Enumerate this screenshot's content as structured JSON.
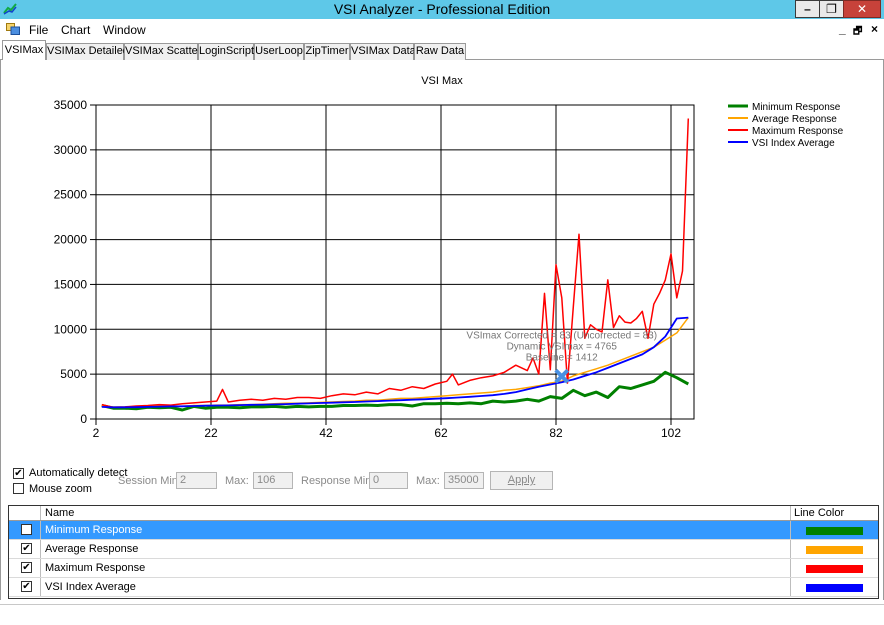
{
  "window": {
    "title": "VSI Analyzer - Professional Edition",
    "minimize_label": "–",
    "restore_label": "❐",
    "close_label": "✕"
  },
  "menu": {
    "items": [
      "File",
      "Chart",
      "Window"
    ],
    "mdi_minimize": "_",
    "mdi_restore": "🗗",
    "mdi_close": "×"
  },
  "tabs": [
    "VSIMax",
    "VSIMax Detailed",
    "VSIMax Scatter",
    "LoginScript",
    "UserLoop",
    "ZipTimer",
    "VSIMax Data",
    "Raw Data"
  ],
  "active_tab": 0,
  "chart_data": {
    "type": "line",
    "title": "VSI Max",
    "x_ticks": [
      2,
      22,
      42,
      62,
      82,
      102
    ],
    "y_ticks": [
      0,
      5000,
      10000,
      15000,
      20000,
      25000,
      30000,
      35000
    ],
    "xlim": [
      2,
      106
    ],
    "ylim": [
      0,
      35000
    ],
    "grid": true,
    "legend_position": "top-right",
    "series": [
      {
        "name": "Minimum Response",
        "color": "#008000",
        "x": [
          3,
          5,
          7,
          9,
          11,
          13,
          15,
          17,
          19,
          21,
          23,
          25,
          27,
          29,
          31,
          33,
          35,
          37,
          39,
          41,
          43,
          45,
          47,
          49,
          51,
          53,
          55,
          57,
          59,
          61,
          63,
          65,
          67,
          69,
          71,
          73,
          75,
          77,
          79,
          81,
          83,
          85,
          87,
          89,
          91,
          93,
          95,
          97,
          99,
          101,
          103,
          105
        ],
        "values": [
          1500,
          1200,
          1200,
          1150,
          1300,
          1250,
          1300,
          1000,
          1400,
          1200,
          1300,
          1300,
          1250,
          1350,
          1350,
          1400,
          1300,
          1400,
          1350,
          1400,
          1400,
          1500,
          1500,
          1550,
          1500,
          1600,
          1600,
          1450,
          1700,
          1700,
          1750,
          1700,
          1800,
          1700,
          2000,
          1900,
          2000,
          2200,
          2000,
          2500,
          2300,
          3200,
          2600,
          3000,
          2400,
          3600,
          3400,
          3800,
          4200,
          5200,
          4600,
          3900
        ]
      },
      {
        "name": "Average Response",
        "color": "#ffa500",
        "x": [
          3,
          5,
          7,
          9,
          11,
          13,
          15,
          17,
          19,
          21,
          23,
          25,
          27,
          29,
          31,
          33,
          35,
          37,
          39,
          41,
          43,
          45,
          47,
          49,
          51,
          53,
          55,
          57,
          59,
          61,
          63,
          65,
          67,
          69,
          71,
          73,
          75,
          77,
          79,
          81,
          83,
          85,
          87,
          89,
          91,
          93,
          95,
          97,
          99,
          101,
          103,
          105
        ],
        "values": [
          1450,
          1350,
          1300,
          1350,
          1400,
          1450,
          1450,
          1400,
          1500,
          1500,
          1550,
          1550,
          1600,
          1600,
          1650,
          1700,
          1750,
          1750,
          1800,
          1850,
          1900,
          1950,
          2000,
          2100,
          2100,
          2200,
          2300,
          2300,
          2400,
          2500,
          2600,
          2700,
          2800,
          2900,
          3000,
          3200,
          3300,
          3500,
          3700,
          4000,
          4200,
          4800,
          5200,
          5600,
          6000,
          6500,
          7000,
          7500,
          8000,
          8800,
          9600,
          11300
        ]
      },
      {
        "name": "Maximum Response",
        "color": "#ff0000",
        "x": [
          3,
          5,
          7,
          9,
          11,
          13,
          15,
          17,
          19,
          21,
          23,
          24,
          25,
          27,
          29,
          31,
          33,
          35,
          37,
          39,
          41,
          43,
          45,
          47,
          49,
          51,
          53,
          55,
          57,
          59,
          61,
          63,
          64,
          65,
          67,
          69,
          71,
          73,
          75,
          77,
          78,
          79,
          80,
          81,
          82,
          83,
          84,
          85,
          86,
          87,
          88,
          89,
          90,
          91,
          92,
          93,
          94,
          95,
          96,
          97,
          98,
          99,
          100,
          101,
          102,
          103,
          104,
          105
        ],
        "values": [
          1600,
          1300,
          1350,
          1450,
          1500,
          1600,
          1550,
          1700,
          1800,
          1900,
          2000,
          3300,
          1900,
          2100,
          2200,
          2100,
          2300,
          2200,
          2400,
          2400,
          2300,
          2600,
          2800,
          2700,
          3000,
          2800,
          3400,
          3200,
          3600,
          3400,
          3900,
          4200,
          5000,
          3800,
          4300,
          4600,
          4800,
          5200,
          6000,
          5400,
          6800,
          5000,
          14000,
          5500,
          17200,
          13500,
          4000,
          12500,
          20600,
          9000,
          10500,
          10000,
          9700,
          15500,
          10200,
          11500,
          10800,
          10700,
          11200,
          12000,
          9000,
          12800,
          14000,
          15500,
          18400,
          13500,
          16500,
          33500
        ]
      },
      {
        "name": "VSI Index Average",
        "color": "#0000ff",
        "x": [
          3,
          5,
          7,
          9,
          11,
          13,
          15,
          17,
          19,
          21,
          23,
          25,
          27,
          29,
          31,
          33,
          35,
          37,
          39,
          41,
          43,
          45,
          47,
          49,
          51,
          53,
          55,
          57,
          59,
          61,
          63,
          65,
          67,
          69,
          71,
          73,
          75,
          77,
          79,
          81,
          83,
          85,
          87,
          89,
          91,
          93,
          95,
          97,
          99,
          101,
          103,
          105
        ],
        "values": [
          1350,
          1300,
          1300,
          1320,
          1350,
          1380,
          1400,
          1420,
          1450,
          1480,
          1500,
          1520,
          1550,
          1580,
          1600,
          1630,
          1660,
          1700,
          1740,
          1780,
          1820,
          1860,
          1900,
          1950,
          2000,
          2050,
          2100,
          2150,
          2200,
          2260,
          2320,
          2400,
          2480,
          2560,
          2650,
          2800,
          3000,
          3300,
          3600,
          3850,
          4100,
          4400,
          4800,
          5200,
          5700,
          6200,
          6700,
          7200,
          8000,
          9200,
          11200,
          11300
        ]
      }
    ],
    "annotations": [
      "VSImax Corrected = 83 (Uncorrected = 83)",
      "Dynamic VSImax = 4765",
      "Baseline = 1412"
    ],
    "marker": {
      "x": 83,
      "y": 4765,
      "color": "#4a90e2"
    }
  },
  "controls": {
    "auto_detect_label": "Automatically detect",
    "auto_detect_checked": true,
    "mouse_zoom_label": "Mouse zoom",
    "mouse_zoom_checked": false,
    "session_min_label": "Session Min:",
    "session_min_value": "2",
    "session_max_label": "Max:",
    "session_max_value": "106",
    "response_min_label": "Response Min:",
    "response_min_value": "0",
    "response_max_label": "Max:",
    "response_max_value": "35000",
    "apply_label": "Apply"
  },
  "series_grid": {
    "col_name": "Name",
    "col_color": "Line Color",
    "rows": [
      {
        "name": "Minimum Response",
        "color": "#008000",
        "checked": true,
        "selected": true
      },
      {
        "name": "Average Response",
        "color": "#ffa500",
        "checked": true,
        "selected": false
      },
      {
        "name": "Maximum Response",
        "color": "#ff0000",
        "checked": true,
        "selected": false
      },
      {
        "name": "VSI Index Average",
        "color": "#0000ff",
        "checked": true,
        "selected": false
      }
    ]
  }
}
